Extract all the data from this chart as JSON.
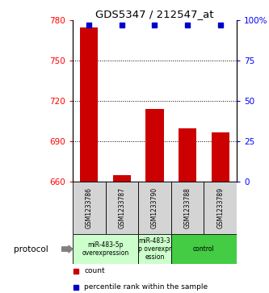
{
  "title": "GDS5347 / 212547_at",
  "categories": [
    "GSM1233786",
    "GSM1233787",
    "GSM1233790",
    "GSM1233788",
    "GSM1233789"
  ],
  "bar_values": [
    775,
    665,
    714,
    700,
    697
  ],
  "percentile_values": [
    97,
    97,
    97,
    97,
    97
  ],
  "bar_color": "#cc0000",
  "dot_color": "#0000cc",
  "ylim_left": [
    660,
    780
  ],
  "ylim_right": [
    0,
    100
  ],
  "yticks_left": [
    660,
    690,
    720,
    750,
    780
  ],
  "yticks_right": [
    0,
    25,
    50,
    75,
    100
  ],
  "ytick_labels_right": [
    "0",
    "25",
    "50",
    "75",
    "100%"
  ],
  "grid_yticks": [
    690,
    720,
    750
  ],
  "protocol_groups": [
    {
      "label": "miR-483-5p\noverexpression",
      "indices": [
        0,
        1
      ],
      "color": "#ccffcc"
    },
    {
      "label": "miR-483-3\np overexpr\nession",
      "indices": [
        2
      ],
      "color": "#ccffcc"
    },
    {
      "label": "control",
      "indices": [
        3,
        4
      ],
      "color": "#44cc44"
    }
  ],
  "legend_count_label": "count",
  "legend_pct_label": "percentile rank within the sample",
  "protocol_label": "protocol",
  "background_color": "#ffffff",
  "bar_base": 660
}
